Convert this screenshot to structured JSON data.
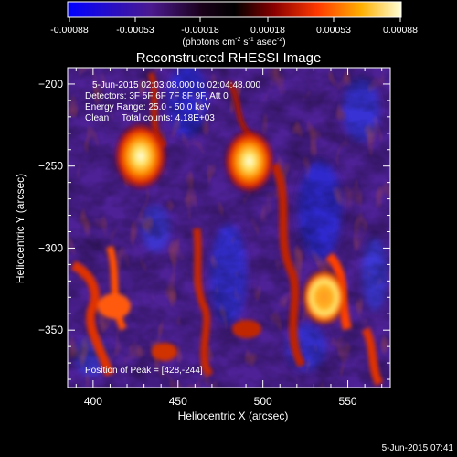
{
  "colorbar": {
    "ticks": [
      "-0.00088",
      "-0.00053",
      "-0.00018",
      "0.00018",
      "0.00053",
      "0.00088"
    ],
    "units_main": "(photons cm",
    "units_exp1": "-2",
    "units_mid": " s",
    "units_exp2": "-1",
    "units_end": " asec",
    "units_exp3": "-2",
    "units_close": ")"
  },
  "plot": {
    "title": "Reconstructed RHESSI Image",
    "xlabel": "Heliocentric X (arcsec)",
    "ylabel": "Heliocentric Y (arcsec)",
    "x_ticks": [
      400,
      450,
      500,
      550
    ],
    "y_ticks": [
      -200,
      -250,
      -300,
      -350
    ],
    "xlim": [
      385,
      575
    ],
    "ylim": [
      -385,
      -190
    ]
  },
  "annotation": {
    "time_range": "5-Jun-2015 02:03:08.000 to 02:04:48.000",
    "detectors": "Detectors: 3F 5F 6F 7F 8F 9F, Att 0",
    "energy": "Energy Range: 25.0 - 50.0 keV",
    "clean": "Clean     Total counts: 4.18E+03",
    "peak": "Position of Peak = [428,-244]"
  },
  "footer": {
    "timestamp": "5-Jun-2015 07:41"
  },
  "image_data": {
    "sources": [
      {
        "x": 428,
        "y": -244,
        "level": 1.0
      },
      {
        "x": 492,
        "y": -247,
        "level": 0.95
      },
      {
        "x": 536,
        "y": -330,
        "level": 0.85
      }
    ]
  }
}
